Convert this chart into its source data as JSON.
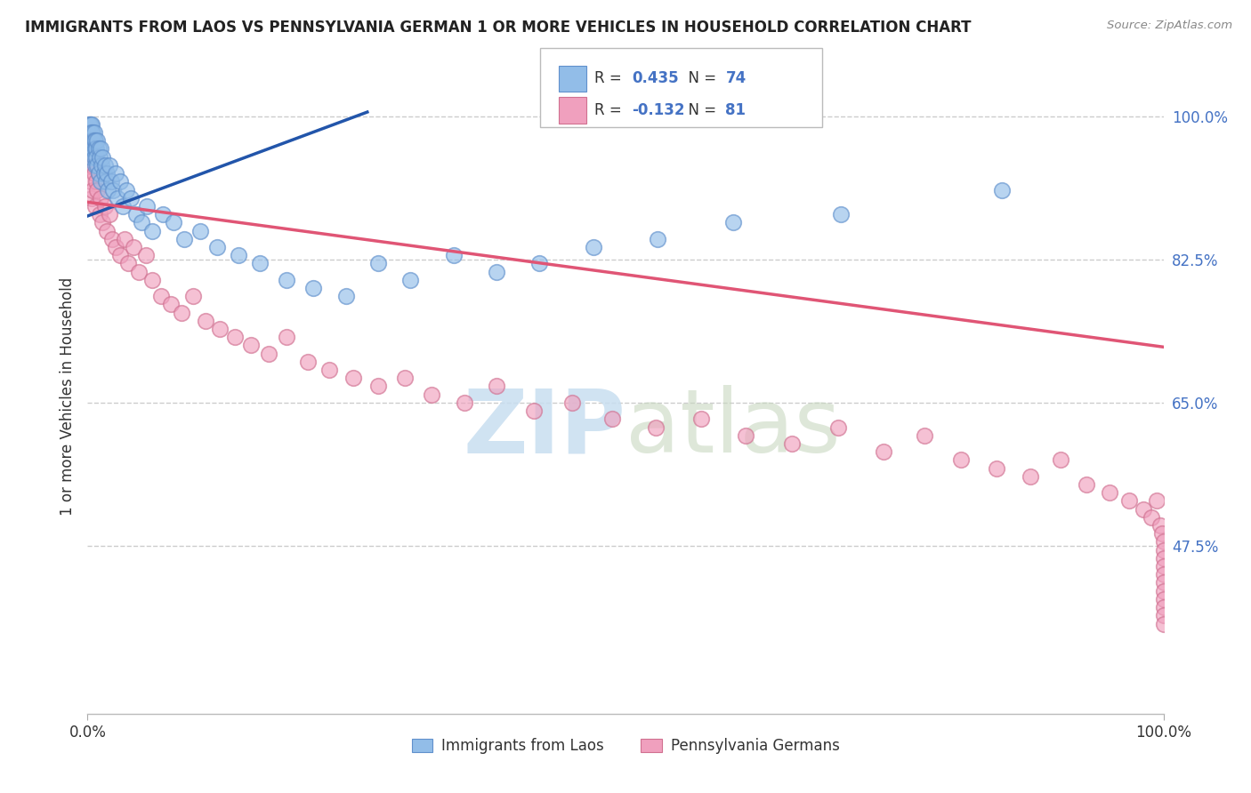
{
  "title": "IMMIGRANTS FROM LAOS VS PENNSYLVANIA GERMAN 1 OR MORE VEHICLES IN HOUSEHOLD CORRELATION CHART",
  "source": "Source: ZipAtlas.com",
  "ylabel": "1 or more Vehicles in Household",
  "xlim": [
    0.0,
    1.0
  ],
  "ylim": [
    0.27,
    1.045
  ],
  "yticks_right": [
    1.0,
    0.825,
    0.65,
    0.475
  ],
  "ytick_labels_right": [
    "100.0%",
    "82.5%",
    "65.0%",
    "47.5%"
  ],
  "blue_R": 0.435,
  "blue_N": 74,
  "pink_R": -0.132,
  "pink_N": 81,
  "legend_label_blue": "Immigrants from Laos",
  "legend_label_pink": "Pennsylvania Germans",
  "blue_color": "#92BDE8",
  "pink_color": "#F0A0BE",
  "blue_edge_color": "#6090CC",
  "pink_edge_color": "#D07090",
  "blue_line_color": "#2255AA",
  "pink_line_color": "#E05575",
  "watermark_color": "#C8DEF0",
  "background_color": "#FFFFFF",
  "grid_color": "#CCCCCC",
  "blue_line_x0": 0.0,
  "blue_line_x1": 0.26,
  "blue_line_y0": 0.878,
  "blue_line_y1": 1.005,
  "pink_line_x0": 0.0,
  "pink_line_x1": 1.0,
  "pink_line_y0": 0.895,
  "pink_line_y1": 0.718,
  "blue_x": [
    0.001,
    0.001,
    0.001,
    0.002,
    0.002,
    0.002,
    0.002,
    0.003,
    0.003,
    0.003,
    0.003,
    0.003,
    0.004,
    0.004,
    0.004,
    0.004,
    0.005,
    0.005,
    0.005,
    0.006,
    0.006,
    0.006,
    0.007,
    0.007,
    0.007,
    0.008,
    0.008,
    0.009,
    0.009,
    0.01,
    0.01,
    0.011,
    0.012,
    0.012,
    0.013,
    0.014,
    0.015,
    0.016,
    0.017,
    0.018,
    0.019,
    0.02,
    0.022,
    0.024,
    0.026,
    0.028,
    0.03,
    0.033,
    0.036,
    0.04,
    0.045,
    0.05,
    0.055,
    0.06,
    0.07,
    0.08,
    0.09,
    0.105,
    0.12,
    0.14,
    0.16,
    0.185,
    0.21,
    0.24,
    0.27,
    0.3,
    0.34,
    0.38,
    0.42,
    0.47,
    0.53,
    0.6,
    0.7,
    0.85
  ],
  "blue_y": [
    0.99,
    0.98,
    0.97,
    0.99,
    0.98,
    0.97,
    0.96,
    0.99,
    0.98,
    0.97,
    0.96,
    0.95,
    0.99,
    0.98,
    0.97,
    0.96,
    0.98,
    0.97,
    0.96,
    0.98,
    0.97,
    0.95,
    0.97,
    0.96,
    0.94,
    0.96,
    0.95,
    0.97,
    0.94,
    0.96,
    0.93,
    0.95,
    0.96,
    0.92,
    0.94,
    0.95,
    0.93,
    0.94,
    0.92,
    0.93,
    0.91,
    0.94,
    0.92,
    0.91,
    0.93,
    0.9,
    0.92,
    0.89,
    0.91,
    0.9,
    0.88,
    0.87,
    0.89,
    0.86,
    0.88,
    0.87,
    0.85,
    0.86,
    0.84,
    0.83,
    0.82,
    0.8,
    0.79,
    0.78,
    0.82,
    0.8,
    0.83,
    0.81,
    0.82,
    0.84,
    0.85,
    0.87,
    0.88,
    0.91
  ],
  "pink_x": [
    0.001,
    0.002,
    0.002,
    0.003,
    0.003,
    0.004,
    0.004,
    0.005,
    0.005,
    0.006,
    0.007,
    0.007,
    0.008,
    0.009,
    0.01,
    0.011,
    0.012,
    0.014,
    0.016,
    0.018,
    0.02,
    0.023,
    0.026,
    0.03,
    0.034,
    0.038,
    0.043,
    0.048,
    0.054,
    0.06,
    0.068,
    0.077,
    0.087,
    0.098,
    0.11,
    0.123,
    0.137,
    0.152,
    0.168,
    0.185,
    0.205,
    0.225,
    0.247,
    0.27,
    0.295,
    0.32,
    0.35,
    0.38,
    0.415,
    0.45,
    0.488,
    0.528,
    0.57,
    0.612,
    0.655,
    0.698,
    0.74,
    0.778,
    0.812,
    0.845,
    0.876,
    0.904,
    0.928,
    0.95,
    0.968,
    0.981,
    0.989,
    0.994,
    0.997,
    0.999,
    1.0,
    1.0,
    1.0,
    1.0,
    1.0,
    1.0,
    1.0,
    1.0,
    1.0,
    1.0,
    1.0
  ],
  "pink_y": [
    0.96,
    0.97,
    0.94,
    0.96,
    0.92,
    0.95,
    0.9,
    0.94,
    0.91,
    0.93,
    0.95,
    0.89,
    0.92,
    0.91,
    0.93,
    0.88,
    0.9,
    0.87,
    0.89,
    0.86,
    0.88,
    0.85,
    0.84,
    0.83,
    0.85,
    0.82,
    0.84,
    0.81,
    0.83,
    0.8,
    0.78,
    0.77,
    0.76,
    0.78,
    0.75,
    0.74,
    0.73,
    0.72,
    0.71,
    0.73,
    0.7,
    0.69,
    0.68,
    0.67,
    0.68,
    0.66,
    0.65,
    0.67,
    0.64,
    0.65,
    0.63,
    0.62,
    0.63,
    0.61,
    0.6,
    0.62,
    0.59,
    0.61,
    0.58,
    0.57,
    0.56,
    0.58,
    0.55,
    0.54,
    0.53,
    0.52,
    0.51,
    0.53,
    0.5,
    0.49,
    0.48,
    0.47,
    0.46,
    0.45,
    0.44,
    0.43,
    0.42,
    0.41,
    0.4,
    0.39,
    0.38
  ]
}
